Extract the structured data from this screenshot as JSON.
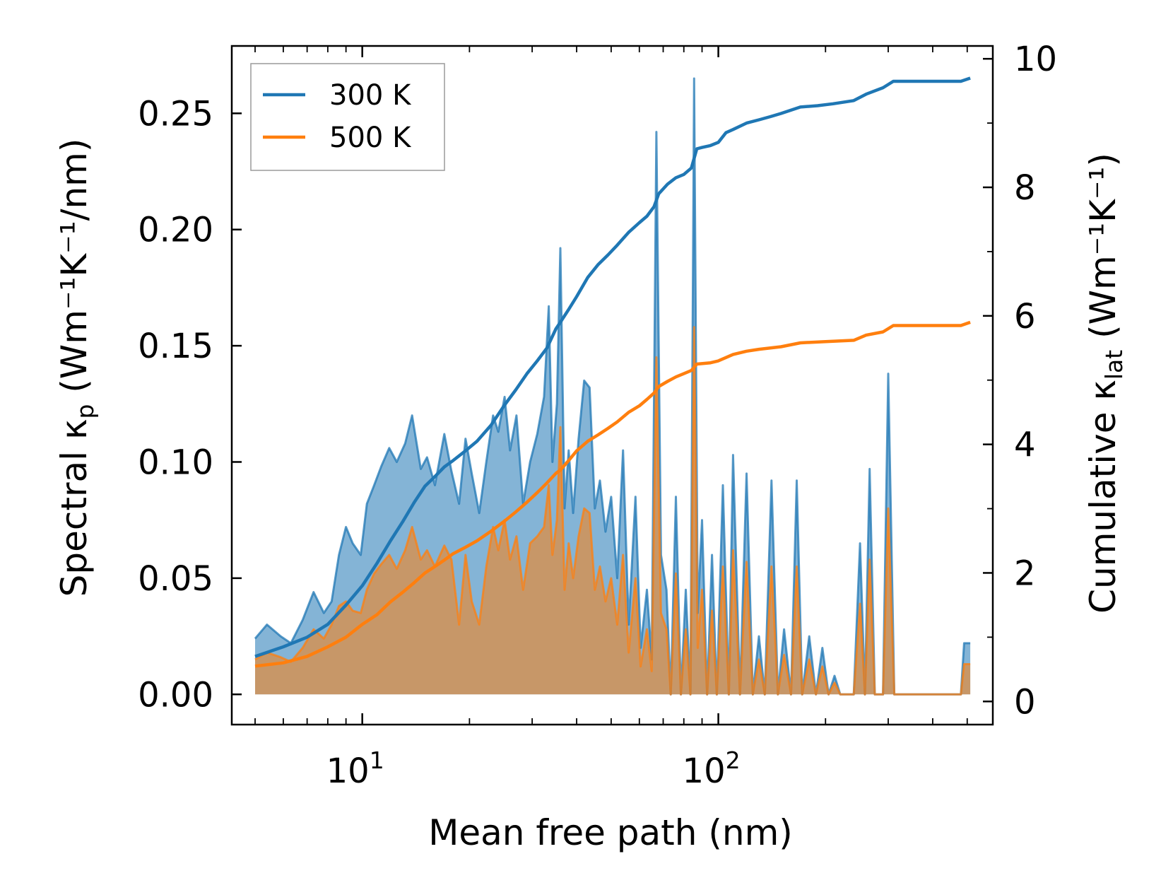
{
  "colors": {
    "series_300": "#1f77b4",
    "series_500": "#ff7f0e",
    "fill_300": "#7fb1d9",
    "fill_500": "#c49a6c",
    "axis": "#000000"
  },
  "chart_data": {
    "type": "line",
    "title": "",
    "xlabel": "Mean free path (nm)",
    "ylabel_left": "Spectral κ",
    "ylabel_left_sub": "p",
    "ylabel_left_units": " (Wm⁻¹K⁻¹/nm)",
    "ylabel_right": "Cumulative κ",
    "ylabel_right_sub": "lat",
    "ylabel_right_units": " (Wm⁻¹K⁻¹)",
    "xscale": "log",
    "xlim": [
      4.3,
      590
    ],
    "ylim_left": [
      -0.013,
      0.279
    ],
    "ylim_right": [
      -0.36,
      10.2
    ],
    "x_tick_labels": [
      {
        "value": 10,
        "base": "10",
        "exp": "1"
      },
      {
        "value": 100,
        "base": "10",
        "exp": "2"
      }
    ],
    "y_left_ticks": [
      0.0,
      0.05,
      0.1,
      0.15,
      0.2,
      0.25
    ],
    "y_left_tick_labels": [
      "0.00",
      "0.05",
      "0.10",
      "0.15",
      "0.20",
      "0.25"
    ],
    "y_right_ticks": [
      0,
      2,
      4,
      6,
      8,
      10
    ],
    "y_right_tick_labels": [
      "0",
      "2",
      "4",
      "6",
      "8",
      "10"
    ],
    "legend": {
      "position": "top-left",
      "entries": [
        "300 K",
        "500 K"
      ]
    },
    "spectral_300": [
      [
        5.0,
        0.024
      ],
      [
        5.4,
        0.03
      ],
      [
        5.9,
        0.025
      ],
      [
        6.3,
        0.022
      ],
      [
        6.8,
        0.032
      ],
      [
        7.3,
        0.044
      ],
      [
        7.8,
        0.035
      ],
      [
        8.2,
        0.04
      ],
      [
        8.6,
        0.06
      ],
      [
        9.0,
        0.072
      ],
      [
        9.4,
        0.065
      ],
      [
        9.9,
        0.06
      ],
      [
        10.3,
        0.082
      ],
      [
        10.8,
        0.09
      ],
      [
        11.3,
        0.098
      ],
      [
        11.9,
        0.106
      ],
      [
        12.5,
        0.1
      ],
      [
        13.2,
        0.108
      ],
      [
        13.8,
        0.12
      ],
      [
        14.6,
        0.097
      ],
      [
        15.2,
        0.102
      ],
      [
        16.0,
        0.09
      ],
      [
        17.0,
        0.112
      ],
      [
        17.8,
        0.096
      ],
      [
        18.7,
        0.082
      ],
      [
        19.5,
        0.11
      ],
      [
        20.3,
        0.095
      ],
      [
        21.3,
        0.078
      ],
      [
        22.3,
        0.1
      ],
      [
        23.3,
        0.12
      ],
      [
        24.1,
        0.113
      ],
      [
        25.1,
        0.128
      ],
      [
        26.0,
        0.105
      ],
      [
        27.1,
        0.12
      ],
      [
        28.3,
        0.082
      ],
      [
        29.6,
        0.1
      ],
      [
        31.0,
        0.112
      ],
      [
        32.4,
        0.128
      ],
      [
        33.4,
        0.167
      ],
      [
        34.2,
        0.1
      ],
      [
        35.2,
        0.125
      ],
      [
        36.0,
        0.192
      ],
      [
        37.0,
        0.08
      ],
      [
        38.0,
        0.105
      ],
      [
        39.1,
        0.078
      ],
      [
        40.5,
        0.11
      ],
      [
        42.0,
        0.135
      ],
      [
        43.5,
        0.132
      ],
      [
        45.0,
        0.08
      ],
      [
        46.5,
        0.092
      ],
      [
        48.2,
        0.07
      ],
      [
        50.0,
        0.085
      ],
      [
        52.0,
        0.05
      ],
      [
        54.0,
        0.105
      ],
      [
        56.0,
        0.03
      ],
      [
        58.5,
        0.085
      ],
      [
        60.5,
        0.02
      ],
      [
        63.0,
        0.045
      ],
      [
        65.0,
        0.015
      ],
      [
        67.0,
        0.242
      ],
      [
        69.0,
        0.06
      ],
      [
        71.5,
        0.045
      ],
      [
        73.5,
        0.0
      ],
      [
        76.0,
        0.085
      ],
      [
        78.5,
        0.0
      ],
      [
        81.0,
        0.045
      ],
      [
        83.5,
        0.0
      ],
      [
        85.5,
        0.265
      ],
      [
        87.5,
        0.035
      ],
      [
        90.0,
        0.075
      ],
      [
        93.0,
        0.0
      ],
      [
        96.0,
        0.06
      ],
      [
        99.0,
        0.0
      ],
      [
        103.0,
        0.09
      ],
      [
        107.0,
        0.0
      ],
      [
        110.0,
        0.103
      ],
      [
        115.0,
        0.0
      ],
      [
        120.0,
        0.095
      ],
      [
        125.0,
        0.0
      ],
      [
        130.0,
        0.025
      ],
      [
        135.0,
        0.0
      ],
      [
        141.0,
        0.092
      ],
      [
        147.0,
        0.0
      ],
      [
        153.0,
        0.028
      ],
      [
        160.0,
        0.0
      ],
      [
        166.0,
        0.092
      ],
      [
        172.0,
        0.0
      ],
      [
        180.0,
        0.025
      ],
      [
        188.0,
        0.0
      ],
      [
        196.0,
        0.02
      ],
      [
        204.0,
        0.0
      ],
      [
        212.0,
        0.008
      ],
      [
        220.0,
        0.0
      ],
      [
        240.0,
        0.0
      ],
      [
        250.0,
        0.065
      ],
      [
        258.0,
        0.0
      ],
      [
        266.0,
        0.097
      ],
      [
        275.0,
        0.0
      ],
      [
        290.0,
        0.0
      ],
      [
        300.0,
        0.138
      ],
      [
        312.0,
        0.0
      ],
      [
        480.0,
        0.0
      ],
      [
        490.0,
        0.022
      ],
      [
        510.0,
        0.022
      ]
    ],
    "spectral_500": [
      [
        5.0,
        0.015
      ],
      [
        5.4,
        0.018
      ],
      [
        5.9,
        0.016
      ],
      [
        6.3,
        0.014
      ],
      [
        6.8,
        0.02
      ],
      [
        7.3,
        0.028
      ],
      [
        7.8,
        0.024
      ],
      [
        8.2,
        0.03
      ],
      [
        8.6,
        0.038
      ],
      [
        9.0,
        0.04
      ],
      [
        9.4,
        0.036
      ],
      [
        9.9,
        0.035
      ],
      [
        10.3,
        0.045
      ],
      [
        10.8,
        0.052
      ],
      [
        11.3,
        0.056
      ],
      [
        11.9,
        0.06
      ],
      [
        12.5,
        0.054
      ],
      [
        13.2,
        0.062
      ],
      [
        13.8,
        0.072
      ],
      [
        14.6,
        0.058
      ],
      [
        15.2,
        0.062
      ],
      [
        16.0,
        0.055
      ],
      [
        17.0,
        0.064
      ],
      [
        17.8,
        0.058
      ],
      [
        18.7,
        0.03
      ],
      [
        19.5,
        0.06
      ],
      [
        20.3,
        0.04
      ],
      [
        21.3,
        0.03
      ],
      [
        22.3,
        0.055
      ],
      [
        23.3,
        0.072
      ],
      [
        24.1,
        0.062
      ],
      [
        25.1,
        0.075
      ],
      [
        26.0,
        0.058
      ],
      [
        27.1,
        0.068
      ],
      [
        28.3,
        0.045
      ],
      [
        29.6,
        0.065
      ],
      [
        31.0,
        0.068
      ],
      [
        32.4,
        0.072
      ],
      [
        33.4,
        0.09
      ],
      [
        34.2,
        0.06
      ],
      [
        35.2,
        0.075
      ],
      [
        36.0,
        0.115
      ],
      [
        37.0,
        0.045
      ],
      [
        38.0,
        0.065
      ],
      [
        39.1,
        0.05
      ],
      [
        40.5,
        0.068
      ],
      [
        42.0,
        0.08
      ],
      [
        43.5,
        0.078
      ],
      [
        45.0,
        0.045
      ],
      [
        46.5,
        0.055
      ],
      [
        48.2,
        0.04
      ],
      [
        50.0,
        0.05
      ],
      [
        52.0,
        0.03
      ],
      [
        54.0,
        0.06
      ],
      [
        56.0,
        0.018
      ],
      [
        58.5,
        0.05
      ],
      [
        60.5,
        0.012
      ],
      [
        63.0,
        0.028
      ],
      [
        65.0,
        0.01
      ],
      [
        67.0,
        0.145
      ],
      [
        69.0,
        0.035
      ],
      [
        71.5,
        0.028
      ],
      [
        73.5,
        0.0
      ],
      [
        76.0,
        0.052
      ],
      [
        78.5,
        0.0
      ],
      [
        81.0,
        0.028
      ],
      [
        83.5,
        0.0
      ],
      [
        85.5,
        0.158
      ],
      [
        87.5,
        0.02
      ],
      [
        90.0,
        0.045
      ],
      [
        93.0,
        0.0
      ],
      [
        96.0,
        0.036
      ],
      [
        99.0,
        0.0
      ],
      [
        103.0,
        0.055
      ],
      [
        107.0,
        0.0
      ],
      [
        110.0,
        0.062
      ],
      [
        115.0,
        0.0
      ],
      [
        120.0,
        0.057
      ],
      [
        125.0,
        0.0
      ],
      [
        130.0,
        0.015
      ],
      [
        135.0,
        0.0
      ],
      [
        141.0,
        0.055
      ],
      [
        147.0,
        0.0
      ],
      [
        153.0,
        0.017
      ],
      [
        160.0,
        0.0
      ],
      [
        166.0,
        0.055
      ],
      [
        172.0,
        0.0
      ],
      [
        180.0,
        0.015
      ],
      [
        188.0,
        0.0
      ],
      [
        196.0,
        0.012
      ],
      [
        204.0,
        0.0
      ],
      [
        212.0,
        0.005
      ],
      [
        220.0,
        0.0
      ],
      [
        240.0,
        0.0
      ],
      [
        250.0,
        0.039
      ],
      [
        258.0,
        0.0
      ],
      [
        266.0,
        0.058
      ],
      [
        275.0,
        0.0
      ],
      [
        290.0,
        0.0
      ],
      [
        300.0,
        0.08
      ],
      [
        312.0,
        0.0
      ],
      [
        480.0,
        0.0
      ],
      [
        490.0,
        0.013
      ],
      [
        510.0,
        0.013
      ]
    ],
    "cumulative_300": [
      [
        5.0,
        0.7
      ],
      [
        6.0,
        0.85
      ],
      [
        7.0,
        1.0
      ],
      [
        8.0,
        1.2
      ],
      [
        9.0,
        1.5
      ],
      [
        10.0,
        1.8
      ],
      [
        11.0,
        2.15
      ],
      [
        12.0,
        2.5
      ],
      [
        13.0,
        2.8
      ],
      [
        14.0,
        3.1
      ],
      [
        15.0,
        3.35
      ],
      [
        16.0,
        3.5
      ],
      [
        17.0,
        3.65
      ],
      [
        18.0,
        3.75
      ],
      [
        19.5,
        3.9
      ],
      [
        21.0,
        4.05
      ],
      [
        23.0,
        4.3
      ],
      [
        25.0,
        4.6
      ],
      [
        27.0,
        4.85
      ],
      [
        29.0,
        5.1
      ],
      [
        31.0,
        5.3
      ],
      [
        33.0,
        5.5
      ],
      [
        35.0,
        5.8
      ],
      [
        36.0,
        5.9
      ],
      [
        38.0,
        6.1
      ],
      [
        40.0,
        6.3
      ],
      [
        43.0,
        6.6
      ],
      [
        46.0,
        6.8
      ],
      [
        49.0,
        6.95
      ],
      [
        52.0,
        7.1
      ],
      [
        56.0,
        7.3
      ],
      [
        60.0,
        7.45
      ],
      [
        63.0,
        7.55
      ],
      [
        66.0,
        7.7
      ],
      [
        68.0,
        7.9
      ],
      [
        72.0,
        8.05
      ],
      [
        76.0,
        8.15
      ],
      [
        80.0,
        8.2
      ],
      [
        84.0,
        8.3
      ],
      [
        87.0,
        8.6
      ],
      [
        90.0,
        8.62
      ],
      [
        95.0,
        8.65
      ],
      [
        100.0,
        8.7
      ],
      [
        105.0,
        8.85
      ],
      [
        110.0,
        8.9
      ],
      [
        120.0,
        9.0
      ],
      [
        130.0,
        9.05
      ],
      [
        140.0,
        9.1
      ],
      [
        150.0,
        9.15
      ],
      [
        170.0,
        9.25
      ],
      [
        190.0,
        9.27
      ],
      [
        210.0,
        9.3
      ],
      [
        240.0,
        9.35
      ],
      [
        260.0,
        9.45
      ],
      [
        290.0,
        9.55
      ],
      [
        310.0,
        9.65
      ],
      [
        400.0,
        9.65
      ],
      [
        480.0,
        9.65
      ],
      [
        510.0,
        9.7
      ]
    ],
    "cumulative_500": [
      [
        5.0,
        0.55
      ],
      [
        6.0,
        0.6
      ],
      [
        7.0,
        0.7
      ],
      [
        8.0,
        0.85
      ],
      [
        9.0,
        1.0
      ],
      [
        10.0,
        1.2
      ],
      [
        11.0,
        1.35
      ],
      [
        12.0,
        1.55
      ],
      [
        13.0,
        1.7
      ],
      [
        14.0,
        1.85
      ],
      [
        15.0,
        2.0
      ],
      [
        16.0,
        2.1
      ],
      [
        17.0,
        2.2
      ],
      [
        18.0,
        2.3
      ],
      [
        19.5,
        2.4
      ],
      [
        21.0,
        2.5
      ],
      [
        23.0,
        2.65
      ],
      [
        25.0,
        2.8
      ],
      [
        27.0,
        2.95
      ],
      [
        29.0,
        3.1
      ],
      [
        31.0,
        3.25
      ],
      [
        33.0,
        3.4
      ],
      [
        35.0,
        3.55
      ],
      [
        36.0,
        3.6
      ],
      [
        38.0,
        3.75
      ],
      [
        40.0,
        3.9
      ],
      [
        43.0,
        4.05
      ],
      [
        46.0,
        4.15
      ],
      [
        49.0,
        4.25
      ],
      [
        52.0,
        4.35
      ],
      [
        56.0,
        4.5
      ],
      [
        60.0,
        4.6
      ],
      [
        63.0,
        4.7
      ],
      [
        66.0,
        4.8
      ],
      [
        68.0,
        4.9
      ],
      [
        72.0,
        4.98
      ],
      [
        76.0,
        5.05
      ],
      [
        80.0,
        5.1
      ],
      [
        84.0,
        5.15
      ],
      [
        87.0,
        5.25
      ],
      [
        95.0,
        5.27
      ],
      [
        100.0,
        5.3
      ],
      [
        110.0,
        5.4
      ],
      [
        120.0,
        5.45
      ],
      [
        130.0,
        5.48
      ],
      [
        150.0,
        5.52
      ],
      [
        170.0,
        5.58
      ],
      [
        200.0,
        5.6
      ],
      [
        240.0,
        5.62
      ],
      [
        260.0,
        5.7
      ],
      [
        290.0,
        5.75
      ],
      [
        310.0,
        5.85
      ],
      [
        400.0,
        5.85
      ],
      [
        480.0,
        5.85
      ],
      [
        510.0,
        5.9
      ]
    ]
  }
}
